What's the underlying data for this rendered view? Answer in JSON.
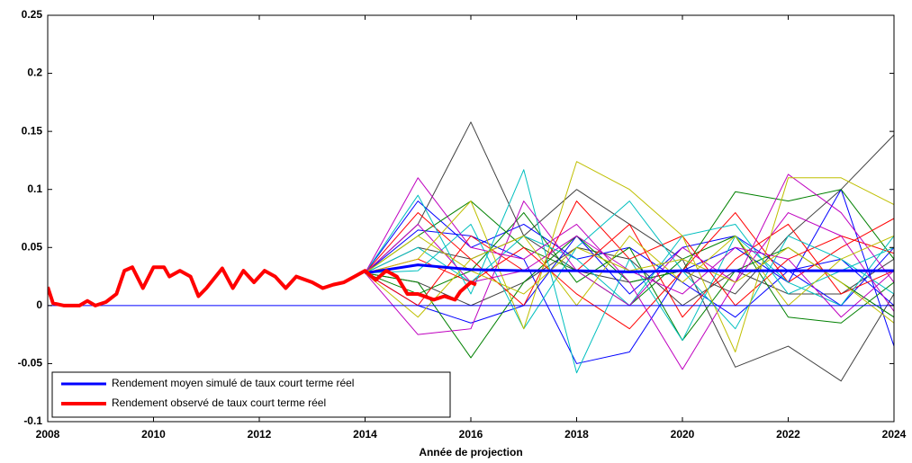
{
  "chart_data": {
    "type": "line",
    "x_label": "Année de projection",
    "xlim": [
      2008,
      2024
    ],
    "xticks": [
      2008,
      2010,
      2012,
      2014,
      2016,
      2018,
      2020,
      2022,
      2024
    ],
    "ylim": [
      -0.1,
      0.25
    ],
    "yticks": [
      -0.1,
      -0.05,
      0,
      0.05,
      0.1,
      0.15,
      0.2,
      0.25
    ],
    "reference_line": {
      "value": 0,
      "color": "#0000ff"
    },
    "legend": "lower left",
    "series": [
      {
        "name": "Rendement moyen simulé de taux court terme réel",
        "color": "#0000ff",
        "x": [
          2014,
          2015,
          2016,
          2017,
          2018,
          2019,
          2020,
          2021,
          2022,
          2023,
          2024
        ],
        "values": [
          0.028,
          0.035,
          0.031,
          0.03,
          0.03,
          0.029,
          0.03,
          0.03,
          0.03,
          0.03,
          0.03
        ]
      },
      {
        "name": "Rendement observé de taux court terme réel",
        "color": "#ff0000",
        "x": [
          2008,
          2008.1,
          2008.3,
          2008.6,
          2008.75,
          2008.9,
          2009.1,
          2009.3,
          2009.45,
          2009.6,
          2009.8,
          2010.0,
          2010.2,
          2010.3,
          2010.5,
          2010.7,
          2010.85,
          2011.0,
          2011.3,
          2011.5,
          2011.7,
          2011.9,
          2012.1,
          2012.3,
          2012.5,
          2012.7,
          2013.0,
          2013.2,
          2013.4,
          2013.6,
          2013.8,
          2014.0,
          2014.2,
          2014.4,
          2014.6,
          2014.8,
          2015.0,
          2015.3,
          2015.5,
          2015.7,
          2015.8,
          2016.0,
          2016.1
        ],
        "values": [
          0.016,
          0.002,
          0.0,
          0.0,
          0.004,
          0.0,
          0.003,
          0.01,
          0.03,
          0.033,
          0.015,
          0.033,
          0.033,
          0.025,
          0.03,
          0.025,
          0.008,
          0.015,
          0.032,
          0.015,
          0.03,
          0.02,
          0.03,
          0.025,
          0.015,
          0.025,
          0.02,
          0.015,
          0.018,
          0.02,
          0.025,
          0.03,
          0.022,
          0.03,
          0.025,
          0.01,
          0.01,
          0.005,
          0.008,
          0.005,
          0.012,
          0.02,
          0.018
        ]
      }
    ],
    "sim_x": [
      2014,
      2015,
      2016,
      2017,
      2018,
      2019,
      2020,
      2021,
      2022,
      2023,
      2024
    ],
    "simulations": [
      {
        "color": "#404040",
        "values": [
          0.028,
          0.07,
          0.158,
          0.06,
          0.1,
          0.07,
          0.04,
          -0.053,
          -0.035,
          -0.065,
          0.01
        ]
      },
      {
        "color": "#404040",
        "values": [
          0.028,
          0.05,
          0.04,
          0.06,
          0.03,
          0.02,
          0.03,
          0.01,
          0.06,
          0.1,
          0.147
        ]
      },
      {
        "color": "#404040",
        "values": [
          0.028,
          0.02,
          0.0,
          0.02,
          0.05,
          0.04,
          0.0,
          0.03,
          0.01,
          0.01,
          0.04
        ]
      },
      {
        "color": "#0000ff",
        "values": [
          0.028,
          0.065,
          0.06,
          0.04,
          -0.05,
          -0.04,
          0.03,
          0.05,
          0.02,
          0.1,
          -0.035
        ]
      },
      {
        "color": "#0000ff",
        "values": [
          0.028,
          0.0,
          -0.015,
          0.0,
          0.06,
          0.01,
          0.05,
          0.06,
          0.03,
          0.0,
          0.05
        ]
      },
      {
        "color": "#0000ff",
        "values": [
          0.028,
          0.09,
          0.05,
          0.07,
          0.04,
          0.05,
          0.02,
          -0.01,
          0.03,
          0.04,
          0.0
        ]
      },
      {
        "color": "#008000",
        "values": [
          0.028,
          0.02,
          -0.045,
          0.02,
          0.06,
          0.02,
          0.03,
          0.098,
          0.09,
          0.1,
          0.04
        ]
      },
      {
        "color": "#008000",
        "values": [
          0.028,
          0.06,
          0.09,
          0.05,
          0.03,
          0.0,
          0.04,
          0.06,
          -0.01,
          -0.015,
          0.02
        ]
      },
      {
        "color": "#008000",
        "values": [
          0.028,
          0.01,
          0.03,
          0.08,
          0.02,
          0.05,
          -0.03,
          0.03,
          0.05,
          0.02,
          -0.01
        ]
      },
      {
        "color": "#ff0000",
        "values": [
          0.028,
          0.04,
          0.02,
          0.05,
          0.01,
          -0.02,
          0.03,
          0.08,
          0.02,
          0.05,
          0.075
        ]
      },
      {
        "color": "#ff0000",
        "values": [
          0.028,
          0.08,
          0.04,
          0.0,
          0.09,
          0.04,
          0.06,
          0.0,
          0.04,
          0.06,
          0.045
        ]
      },
      {
        "color": "#ff0000",
        "values": [
          0.028,
          0.0,
          0.06,
          0.03,
          0.03,
          0.07,
          -0.01,
          0.04,
          0.07,
          0.01,
          0.03
        ]
      },
      {
        "color": "#00bfbf",
        "values": [
          0.028,
          0.095,
          0.01,
          0.117,
          -0.058,
          0.04,
          -0.03,
          0.06,
          0.02,
          0.0,
          0.06
        ]
      },
      {
        "color": "#00bfbf",
        "values": [
          0.028,
          0.03,
          0.07,
          -0.02,
          0.05,
          0.09,
          0.03,
          -0.02,
          0.06,
          0.04,
          0.01
        ]
      },
      {
        "color": "#00bfbf",
        "values": [
          0.028,
          0.05,
          0.02,
          0.06,
          0.04,
          0.0,
          0.06,
          0.07,
          0.01,
          0.03,
          0.05
        ]
      },
      {
        "color": "#bf00bf",
        "values": [
          0.028,
          0.11,
          0.05,
          0.04,
          0.07,
          0.02,
          -0.055,
          0.02,
          0.08,
          0.06,
          -0.005
        ]
      },
      {
        "color": "#bf00bf",
        "values": [
          0.028,
          -0.025,
          -0.02,
          0.09,
          0.03,
          0.0,
          0.05,
          0.02,
          0.113,
          0.08,
          0.02
        ]
      },
      {
        "color": "#bf00bf",
        "values": [
          0.028,
          0.07,
          0.02,
          0.03,
          0.06,
          0.03,
          0.01,
          0.05,
          0.04,
          -0.01,
          0.03
        ]
      },
      {
        "color": "#bfbf00",
        "values": [
          0.028,
          0.04,
          0.09,
          -0.02,
          0.124,
          0.1,
          0.06,
          -0.04,
          0.11,
          0.11,
          0.087
        ]
      },
      {
        "color": "#bfbf00",
        "values": [
          0.028,
          -0.01,
          0.04,
          0.06,
          0.0,
          0.06,
          0.02,
          0.06,
          0.0,
          0.04,
          0.06
        ]
      },
      {
        "color": "#bfbf00",
        "values": [
          0.028,
          0.06,
          0.03,
          0.01,
          0.05,
          0.03,
          0.04,
          0.02,
          0.05,
          0.02,
          -0.015
        ]
      }
    ]
  }
}
